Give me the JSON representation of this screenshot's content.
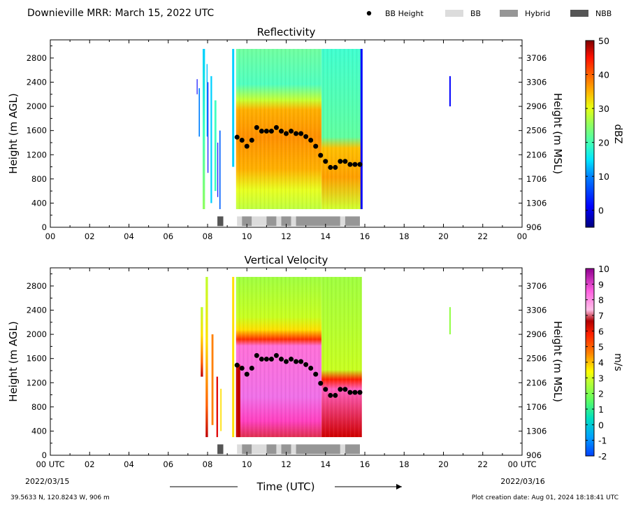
{
  "header": {
    "title": "Downieville MRR:  March 15, 2022 UTC",
    "legend": [
      {
        "kind": "marker",
        "label": "BB Height",
        "color": "#000000"
      },
      {
        "kind": "swatch",
        "label": "BB",
        "color": "#dcdcdc"
      },
      {
        "kind": "swatch",
        "label": "Hybrid",
        "color": "#969696"
      },
      {
        "kind": "swatch",
        "label": "NBB",
        "color": "#555555"
      }
    ]
  },
  "footer": {
    "location": "39.5633 N, 120.8243 W, 906 m",
    "creation": "Plot creation date: Aug 01, 2024 18:18:41 UTC",
    "xlabel": "Time (UTC)",
    "start_label": "00 UTC",
    "start_date": "2022/03/15",
    "end_label": "00 UTC",
    "end_date": "2022/03/16"
  },
  "chart_data": [
    {
      "type": "heatmap",
      "title": "Reflectivity",
      "ylabel": "Height (m AGL)",
      "y2label": "Height (m MSL)",
      "xlim": [
        0,
        24
      ],
      "ylim": [
        0,
        3100
      ],
      "xticks": [
        "00",
        "02",
        "04",
        "06",
        "08",
        "10",
        "12",
        "14",
        "16",
        "18",
        "20",
        "22",
        "00"
      ],
      "yticks": [
        0,
        400,
        800,
        1200,
        1600,
        2000,
        2400,
        2800
      ],
      "y2ticks": [
        906,
        1306,
        1706,
        2106,
        2506,
        2906,
        3306,
        3706
      ],
      "colorbar": {
        "label": "dBZ",
        "min": -5,
        "max": 50,
        "ticks": [
          0,
          10,
          20,
          30,
          40,
          50
        ]
      },
      "bb_height": {
        "x": [
          9.5,
          9.75,
          10.0,
          10.25,
          10.5,
          10.75,
          11.0,
          11.25,
          11.5,
          11.75,
          12.0,
          12.25,
          12.5,
          12.75,
          13.0,
          13.25,
          13.5,
          13.75,
          14.0,
          14.25,
          14.5,
          14.75,
          15.0,
          15.25,
          15.5,
          15.75
        ],
        "y": [
          1490,
          1440,
          1340,
          1440,
          1650,
          1590,
          1590,
          1590,
          1650,
          1590,
          1550,
          1590,
          1550,
          1550,
          1500,
          1440,
          1340,
          1190,
          1090,
          990,
          990,
          1090,
          1090,
          1040,
          1040,
          1040
        ]
      },
      "bb_type": [
        {
          "start": 8.5,
          "end": 8.8,
          "type": "NBB"
        },
        {
          "start": 9.5,
          "end": 9.75,
          "type": "BB"
        },
        {
          "start": 9.75,
          "end": 10.25,
          "type": "Hybrid"
        },
        {
          "start": 10.25,
          "end": 11.0,
          "type": "BB"
        },
        {
          "start": 11.0,
          "end": 11.5,
          "type": "Hybrid"
        },
        {
          "start": 11.5,
          "end": 11.75,
          "type": "BB"
        },
        {
          "start": 11.75,
          "end": 12.25,
          "type": "Hybrid"
        },
        {
          "start": 12.25,
          "end": 12.5,
          "type": "BB"
        },
        {
          "start": 12.5,
          "end": 14.75,
          "type": "Hybrid"
        },
        {
          "start": 14.75,
          "end": 15.0,
          "type": "BB"
        },
        {
          "start": 15.0,
          "end": 15.75,
          "type": "Hybrid"
        }
      ]
    },
    {
      "type": "heatmap",
      "title": "Vertical Velocity",
      "ylabel": "Height (m AGL)",
      "y2label": "Height (m MSL)",
      "xlim": [
        0,
        24
      ],
      "ylim": [
        0,
        3100
      ],
      "xticks": [
        "00 UTC",
        "02",
        "04",
        "06",
        "08",
        "10",
        "12",
        "14",
        "16",
        "18",
        "20",
        "22",
        "00 UTC"
      ],
      "yticks": [
        0,
        400,
        800,
        1200,
        1600,
        2000,
        2400,
        2800
      ],
      "y2ticks": [
        906,
        1306,
        1706,
        2106,
        2506,
        2906,
        3306,
        3706
      ],
      "colorbar": {
        "label": "m/s",
        "min": -2,
        "max": 10,
        "ticks": [
          -2,
          -1,
          0,
          1,
          2,
          3,
          4,
          5,
          6,
          7,
          8,
          9,
          10
        ]
      },
      "bb_height": {
        "x": [
          9.5,
          9.75,
          10.0,
          10.25,
          10.5,
          10.75,
          11.0,
          11.25,
          11.5,
          11.75,
          12.0,
          12.25,
          12.5,
          12.75,
          13.0,
          13.25,
          13.5,
          13.75,
          14.0,
          14.25,
          14.5,
          14.75,
          15.0,
          15.25,
          15.5,
          15.75
        ],
        "y": [
          1490,
          1440,
          1340,
          1440,
          1650,
          1590,
          1590,
          1590,
          1650,
          1590,
          1550,
          1590,
          1550,
          1550,
          1500,
          1440,
          1340,
          1190,
          1090,
          990,
          990,
          1090,
          1090,
          1040,
          1040,
          1040
        ]
      },
      "bb_type": [
        {
          "start": 8.5,
          "end": 8.8,
          "type": "NBB"
        },
        {
          "start": 9.5,
          "end": 9.75,
          "type": "BB"
        },
        {
          "start": 9.75,
          "end": 10.25,
          "type": "Hybrid"
        },
        {
          "start": 10.25,
          "end": 11.0,
          "type": "BB"
        },
        {
          "start": 11.0,
          "end": 11.5,
          "type": "Hybrid"
        },
        {
          "start": 11.5,
          "end": 11.75,
          "type": "BB"
        },
        {
          "start": 11.75,
          "end": 12.25,
          "type": "Hybrid"
        },
        {
          "start": 12.25,
          "end": 12.5,
          "type": "BB"
        },
        {
          "start": 12.5,
          "end": 14.75,
          "type": "Hybrid"
        },
        {
          "start": 14.75,
          "end": 15.0,
          "type": "BB"
        },
        {
          "start": 15.0,
          "end": 15.75,
          "type": "Hybrid"
        }
      ]
    }
  ]
}
